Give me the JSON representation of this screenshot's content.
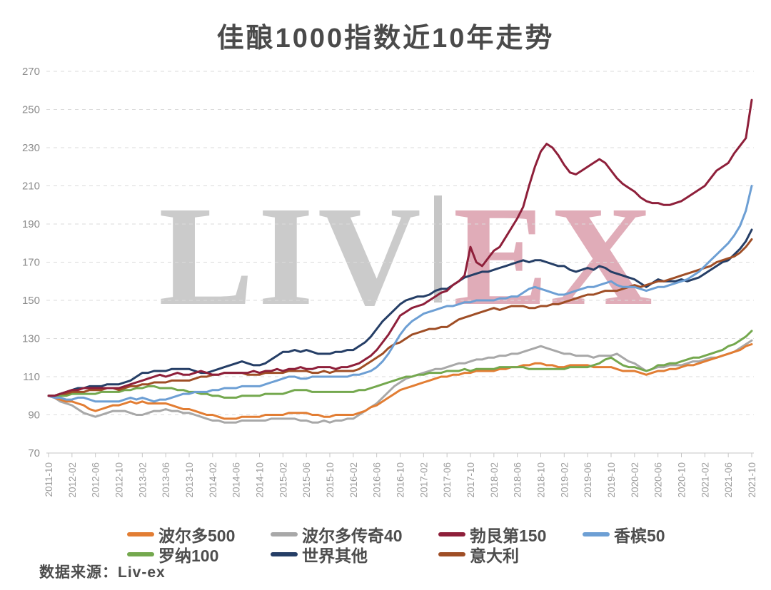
{
  "title": "佳酿1000指数近10年走势",
  "source": "数据来源：Liv-ex",
  "watermark": {
    "text_left": "LIV",
    "text_right": "EX",
    "left_color": "#cbcbcb",
    "divider_color": "#c6c6c6",
    "right_color": "#e0acb8"
  },
  "chart_data": {
    "type": "line",
    "title": "佳酿1000指数近10年走势",
    "x_start": "2011-10",
    "x_end": "2021-10",
    "x_interval": "monthly",
    "x_tick_labels": [
      "2011-10",
      "2012-02",
      "2012-06",
      "2012-10",
      "2013-02",
      "2013-06",
      "2013-10",
      "2014-02",
      "2014-06",
      "2014-10",
      "2015-02",
      "2015-06",
      "2015-10",
      "2016-02",
      "2016-06",
      "2016-10",
      "2017-02",
      "2017-06",
      "2017-10",
      "2018-02",
      "2018-06",
      "2018-10",
      "2019-02",
      "2019-06",
      "2019-10",
      "2020-02",
      "2020-06",
      "2020-10",
      "2021-02",
      "2021-06",
      "2021-10"
    ],
    "ylim": [
      70,
      270
    ],
    "y_ticks": [
      70,
      90,
      110,
      130,
      150,
      170,
      190,
      210,
      230,
      250,
      270
    ],
    "grid": "horizontal-dashed",
    "grid_color": "#dbdbdb",
    "axis_color": "#c6c6c6",
    "legend_position": "bottom",
    "series": [
      {
        "name": "波尔多500",
        "color": "#e27d33",
        "values": [
          100,
          99,
          98,
          97,
          97,
          96,
          95,
          93,
          92,
          93,
          94,
          95,
          95,
          96,
          97,
          96,
          97,
          96,
          96,
          96,
          96,
          95,
          94,
          93,
          93,
          92,
          91,
          90,
          90,
          89,
          88,
          88,
          88,
          89,
          89,
          89,
          89,
          90,
          90,
          90,
          90,
          91,
          91,
          91,
          91,
          90,
          90,
          89,
          89,
          90,
          90,
          90,
          90,
          91,
          92,
          94,
          95,
          97,
          99,
          101,
          103,
          104,
          105,
          106,
          107,
          108,
          109,
          110,
          110,
          111,
          111,
          112,
          112,
          113,
          113,
          113,
          113,
          114,
          114,
          115,
          115,
          116,
          116,
          117,
          117,
          116,
          116,
          115,
          115,
          116,
          116,
          116,
          116,
          115,
          115,
          115,
          115,
          114,
          113,
          113,
          113,
          112,
          111,
          112,
          113,
          113,
          114,
          114,
          115,
          116,
          116,
          117,
          118,
          119,
          120,
          121,
          122,
          123,
          124,
          126,
          127
        ]
      },
      {
        "name": "波尔多传奇40",
        "color": "#a8a8a8",
        "values": [
          100,
          99,
          97,
          96,
          95,
          93,
          91,
          90,
          89,
          90,
          91,
          92,
          92,
          92,
          91,
          90,
          90,
          91,
          92,
          92,
          93,
          92,
          92,
          91,
          91,
          90,
          89,
          88,
          87,
          87,
          86,
          86,
          86,
          87,
          87,
          87,
          87,
          87,
          88,
          88,
          88,
          88,
          88,
          87,
          87,
          86,
          86,
          87,
          86,
          87,
          87,
          88,
          88,
          90,
          92,
          94,
          96,
          99,
          102,
          105,
          107,
          109,
          110,
          111,
          112,
          113,
          114,
          114,
          115,
          116,
          117,
          117,
          118,
          119,
          119,
          120,
          120,
          121,
          121,
          122,
          122,
          123,
          124,
          125,
          126,
          125,
          124,
          123,
          122,
          122,
          121,
          121,
          121,
          120,
          121,
          121,
          121,
          122,
          120,
          118,
          117,
          115,
          113,
          114,
          115,
          115,
          116,
          116,
          116,
          117,
          118,
          118,
          119,
          120,
          120,
          121,
          122,
          123,
          125,
          127,
          129
        ]
      },
      {
        "name": "勃艮第150",
        "color": "#8e1f3a",
        "values": [
          100,
          100,
          101,
          102,
          103,
          103,
          104,
          104,
          104,
          104,
          104,
          104,
          104,
          105,
          106,
          107,
          108,
          109,
          110,
          111,
          110,
          111,
          112,
          111,
          111,
          112,
          113,
          112,
          111,
          111,
          112,
          112,
          112,
          112,
          112,
          113,
          112,
          113,
          113,
          114,
          113,
          114,
          114,
          115,
          114,
          114,
          115,
          115,
          115,
          114,
          115,
          115,
          116,
          117,
          119,
          121,
          124,
          128,
          132,
          137,
          142,
          144,
          146,
          147,
          148,
          150,
          152,
          154,
          155,
          158,
          160,
          163,
          178,
          170,
          168,
          172,
          176,
          178,
          183,
          188,
          193,
          199,
          210,
          220,
          228,
          232,
          230,
          226,
          221,
          217,
          216,
          218,
          220,
          222,
          224,
          222,
          218,
          214,
          211,
          209,
          207,
          204,
          202,
          201,
          201,
          200,
          200,
          201,
          202,
          204,
          206,
          208,
          210,
          214,
          218,
          220,
          222,
          227,
          231,
          235,
          255
        ]
      },
      {
        "name": "香槟50",
        "color": "#6d9fd4",
        "values": [
          100,
          99,
          99,
          98,
          98,
          99,
          99,
          98,
          97,
          97,
          97,
          97,
          97,
          98,
          99,
          98,
          99,
          98,
          97,
          98,
          98,
          99,
          100,
          101,
          101,
          102,
          102,
          102,
          103,
          103,
          104,
          104,
          104,
          105,
          105,
          105,
          105,
          106,
          107,
          108,
          109,
          110,
          110,
          109,
          109,
          110,
          110,
          110,
          110,
          110,
          110,
          110,
          111,
          111,
          112,
          113,
          115,
          118,
          122,
          127,
          132,
          136,
          139,
          141,
          143,
          144,
          145,
          146,
          147,
          147,
          148,
          149,
          149,
          150,
          150,
          150,
          150,
          151,
          151,
          152,
          152,
          154,
          156,
          157,
          156,
          155,
          154,
          153,
          153,
          154,
          155,
          156,
          157,
          157,
          158,
          159,
          160,
          158,
          157,
          157,
          157,
          156,
          155,
          156,
          157,
          157,
          158,
          159,
          160,
          161,
          163,
          165,
          168,
          171,
          174,
          177,
          180,
          184,
          189,
          197,
          210
        ]
      },
      {
        "name": "罗纳100",
        "color": "#74a84e",
        "values": [
          100,
          100,
          100,
          100,
          101,
          101,
          101,
          101,
          101,
          102,
          102,
          102,
          102,
          103,
          103,
          104,
          104,
          105,
          105,
          104,
          104,
          104,
          103,
          103,
          102,
          102,
          101,
          101,
          100,
          100,
          99,
          99,
          99,
          100,
          100,
          100,
          100,
          101,
          101,
          101,
          101,
          102,
          103,
          103,
          103,
          102,
          102,
          102,
          102,
          102,
          102,
          102,
          102,
          103,
          103,
          104,
          105,
          106,
          107,
          108,
          109,
          110,
          110,
          111,
          111,
          112,
          112,
          112,
          113,
          113,
          113,
          114,
          113,
          114,
          114,
          114,
          114,
          115,
          115,
          115,
          115,
          115,
          114,
          114,
          114,
          114,
          114,
          114,
          114,
          115,
          115,
          115,
          115,
          116,
          117,
          119,
          120,
          118,
          116,
          115,
          115,
          114,
          113,
          114,
          116,
          116,
          117,
          117,
          118,
          119,
          120,
          120,
          121,
          122,
          123,
          124,
          126,
          127,
          129,
          131,
          134
        ]
      },
      {
        "name": "世界其他",
        "color": "#253e66",
        "values": [
          100,
          100,
          101,
          102,
          103,
          104,
          104,
          105,
          105,
          105,
          106,
          106,
          106,
          107,
          108,
          110,
          112,
          112,
          113,
          113,
          113,
          114,
          114,
          114,
          114,
          113,
          112,
          112,
          113,
          114,
          115,
          116,
          117,
          118,
          117,
          116,
          116,
          117,
          119,
          121,
          123,
          123,
          124,
          123,
          124,
          123,
          122,
          122,
          122,
          123,
          123,
          124,
          124,
          126,
          128,
          131,
          135,
          139,
          142,
          145,
          148,
          150,
          151,
          152,
          152,
          153,
          155,
          156,
          156,
          158,
          160,
          162,
          163,
          164,
          165,
          165,
          166,
          167,
          168,
          169,
          170,
          171,
          170,
          171,
          171,
          170,
          169,
          168,
          168,
          166,
          165,
          166,
          167,
          166,
          168,
          167,
          165,
          164,
          163,
          162,
          161,
          159,
          157,
          159,
          161,
          160,
          160,
          160,
          161,
          160,
          161,
          162,
          164,
          166,
          168,
          170,
          171,
          174,
          177,
          181,
          187
        ]
      },
      {
        "name": "意大利",
        "color": "#9f4e26",
        "values": [
          100,
          100,
          101,
          101,
          102,
          102,
          102,
          103,
          103,
          103,
          104,
          104,
          103,
          104,
          105,
          105,
          106,
          106,
          107,
          107,
          107,
          108,
          108,
          108,
          108,
          109,
          110,
          110,
          111,
          111,
          112,
          112,
          112,
          112,
          111,
          111,
          111,
          112,
          112,
          112,
          112,
          113,
          113,
          113,
          113,
          112,
          112,
          113,
          112,
          113,
          113,
          113,
          113,
          114,
          116,
          118,
          120,
          122,
          125,
          127,
          128,
          130,
          132,
          133,
          134,
          135,
          135,
          136,
          136,
          138,
          140,
          141,
          142,
          143,
          144,
          145,
          146,
          145,
          146,
          147,
          147,
          147,
          146,
          146,
          147,
          147,
          148,
          148,
          149,
          150,
          151,
          152,
          153,
          153,
          154,
          155,
          155,
          155,
          156,
          157,
          158,
          157,
          158,
          159,
          160,
          160,
          161,
          162,
          163,
          164,
          165,
          166,
          167,
          168,
          170,
          171,
          172,
          173,
          175,
          178,
          182
        ]
      }
    ]
  }
}
